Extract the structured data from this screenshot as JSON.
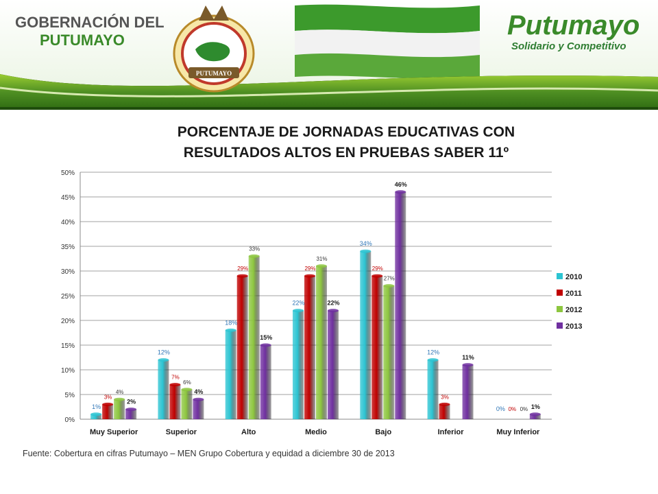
{
  "header": {
    "gov_line1": "GOBERNACIÓN DEL",
    "gov_line2": "PUTUMAYO",
    "crest_text": "PUTUMAYO",
    "brand_name": "Putumayo",
    "brand_slogan": "Solidario y Competitivo"
  },
  "colors": {
    "2010": "#2cc4d2",
    "2011": "#c00000",
    "2012": "#8dc63f",
    "2013": "#7030a0",
    "label_2010": "#2e75b6",
    "label_2011": "#c00000",
    "label_2012": "#333333",
    "label_2013": "#1a1a1a"
  },
  "chart_data": {
    "type": "bar",
    "title": "PORCENTAJE DE JORNADAS EDUCATIVAS CON RESULTADOS ALTOS EN PRUEBAS SABER 11º",
    "title_lines": [
      "PORCENTAJE DE JORNADAS EDUCATIVAS CON",
      "RESULTADOS ALTOS EN PRUEBAS SABER 11º"
    ],
    "categories": [
      "Muy Superior",
      "Superior",
      "Alto",
      "Medio",
      "Bajo",
      "Inferior",
      "Muy Inferior"
    ],
    "series": [
      {
        "name": "2010",
        "values": [
          1,
          12,
          18,
          22,
          34,
          12,
          0
        ]
      },
      {
        "name": "2011",
        "values": [
          3,
          7,
          29,
          29,
          29,
          3,
          0
        ]
      },
      {
        "name": "2012",
        "values": [
          4,
          6,
          33,
          31,
          27,
          0,
          0
        ]
      },
      {
        "name": "2013",
        "values": [
          2,
          4,
          15,
          22,
          46,
          11,
          1
        ]
      }
    ],
    "ylim": [
      0,
      50
    ],
    "yticks": [
      0,
      5,
      10,
      15,
      20,
      25,
      30,
      35,
      40,
      45,
      50
    ],
    "value_suffix": "%",
    "grid": true,
    "legend_position": "right"
  },
  "source": "Fuente: Cobertura en cifras Putumayo – MEN Grupo Cobertura y equidad a diciembre 30 de 2013"
}
